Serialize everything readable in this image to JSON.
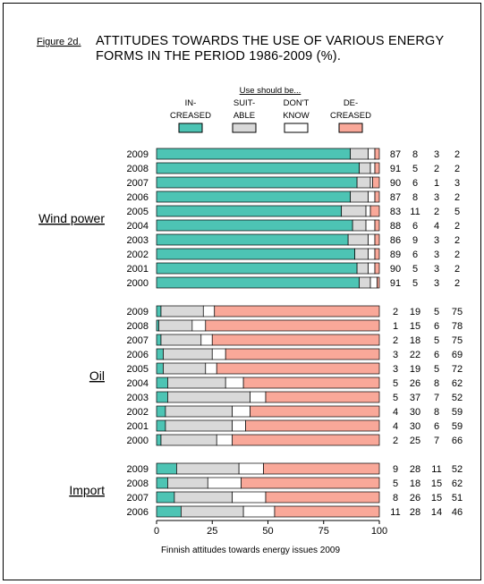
{
  "figure_label": "Figure 2d.",
  "title_line1": "ATTITUDES TOWARDS THE USE OF VARIOUS ENERGY",
  "title_line2": "FORMS IN THE PERIOD 1986-2009 (%).",
  "legend_header": "Use should be...",
  "footer": "Finnish attitudes towards energy issues 2009",
  "colors": {
    "increased": "#4dc4b4",
    "suitable": "#d9d9d9",
    "dont_know": "#ffffff",
    "decreased": "#f9a899",
    "border": "#000000"
  },
  "chart_data": {
    "type": "bar",
    "orientation": "horizontal",
    "stacked": true,
    "xlim": [
      0,
      100
    ],
    "xticks": [
      "0",
      "25",
      "50",
      "75",
      "100"
    ],
    "series": [
      {
        "key": "increased",
        "name_line1": "IN-",
        "name_line2": "CREASED"
      },
      {
        "key": "suitable",
        "name_line1": "SUIT-",
        "name_line2": "ABLE"
      },
      {
        "key": "dont_know",
        "name_line1": "DON'T",
        "name_line2": "KNOW"
      },
      {
        "key": "decreased",
        "name_line1": "DE-",
        "name_line2": "CREASED"
      }
    ],
    "groups": [
      {
        "name": "Wind power",
        "rows": [
          {
            "year": "2009",
            "values": [
              87,
              8,
              3,
              2
            ]
          },
          {
            "year": "2008",
            "values": [
              91,
              5,
              2,
              2
            ]
          },
          {
            "year": "2007",
            "values": [
              90,
              6,
              1,
              3
            ]
          },
          {
            "year": "2006",
            "values": [
              87,
              8,
              3,
              2
            ]
          },
          {
            "year": "2005",
            "values": [
              83,
              11,
              2,
              5
            ]
          },
          {
            "year": "2004",
            "values": [
              88,
              6,
              4,
              2
            ]
          },
          {
            "year": "2003",
            "values": [
              86,
              9,
              3,
              2
            ]
          },
          {
            "year": "2002",
            "values": [
              89,
              6,
              3,
              2
            ]
          },
          {
            "year": "2001",
            "values": [
              90,
              5,
              3,
              2
            ]
          },
          {
            "year": "2000",
            "values": [
              91,
              5,
              3,
              2
            ]
          }
        ]
      },
      {
        "name": "Oil",
        "rows": [
          {
            "year": "2009",
            "values": [
              2,
              19,
              5,
              75
            ]
          },
          {
            "year": "2008",
            "values": [
              1,
              15,
              6,
              78
            ]
          },
          {
            "year": "2007",
            "values": [
              2,
              18,
              5,
              75
            ]
          },
          {
            "year": "2006",
            "values": [
              3,
              22,
              6,
              69
            ]
          },
          {
            "year": "2005",
            "values": [
              3,
              19,
              5,
              72
            ]
          },
          {
            "year": "2004",
            "values": [
              5,
              26,
              8,
              62
            ]
          },
          {
            "year": "2003",
            "values": [
              5,
              37,
              7,
              52
            ]
          },
          {
            "year": "2002",
            "values": [
              4,
              30,
              8,
              59
            ]
          },
          {
            "year": "2001",
            "values": [
              4,
              30,
              6,
              59
            ]
          },
          {
            "year": "2000",
            "values": [
              2,
              25,
              7,
              66
            ]
          }
        ]
      },
      {
        "name": "Import",
        "rows": [
          {
            "year": "2009",
            "values": [
              9,
              28,
              11,
              52
            ]
          },
          {
            "year": "2008",
            "values": [
              5,
              18,
              15,
              62
            ]
          },
          {
            "year": "2007",
            "values": [
              8,
              26,
              15,
              51
            ]
          },
          {
            "year": "2006",
            "values": [
              11,
              28,
              14,
              46
            ]
          }
        ]
      }
    ]
  }
}
